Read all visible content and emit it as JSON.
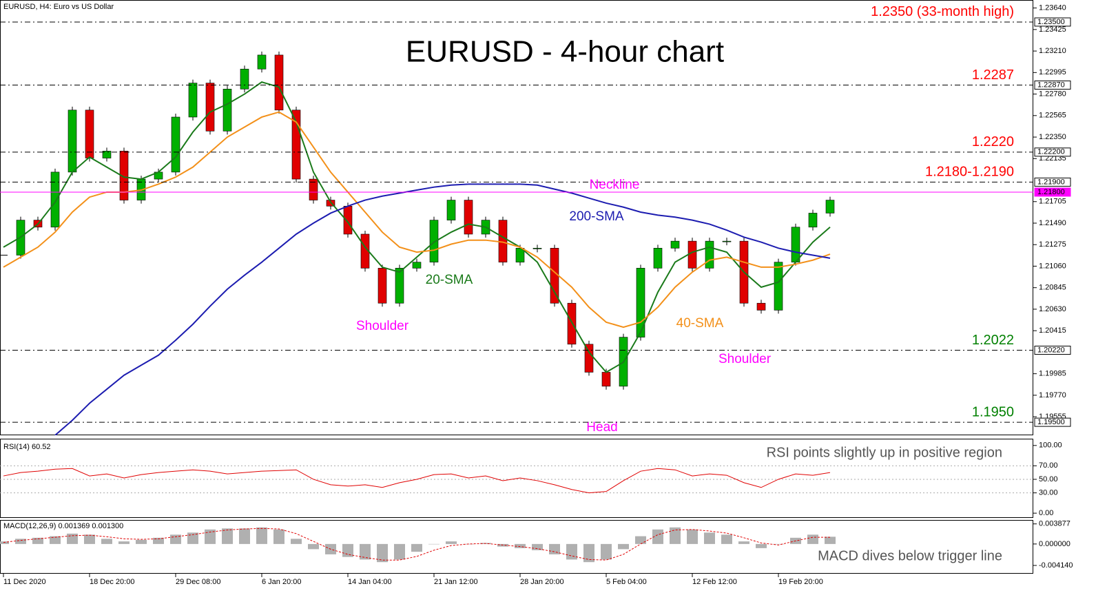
{
  "chart_data": [
    {
      "type": "candlestick",
      "title": "EURUSD - 4-hour chart",
      "subtitle": "EURUSD, H4:  Euro vs US Dollar",
      "categories": [
        "11 Dec 2020",
        null,
        null,
        null,
        null,
        "18 Dec 20:00",
        null,
        null,
        null,
        null,
        "29 Dec 08:00",
        null,
        null,
        null,
        null,
        "6 Jan 20:00",
        null,
        null,
        null,
        null,
        "14 Jan 04:00",
        null,
        null,
        null,
        null,
        "21 Jan 12:00",
        null,
        null,
        null,
        null,
        "28 Jan 20:00",
        null,
        null,
        null,
        null,
        "5 Feb 04:00",
        null,
        null,
        null,
        null,
        "12 Feb 12:00",
        null,
        null,
        null,
        null,
        "19 Feb 20:00",
        null,
        null,
        null
      ],
      "values": [
        1.2117,
        1.2152,
        1.2145,
        1.22,
        1.2262,
        1.2214,
        1.2221,
        1.2172,
        1.2193,
        1.22,
        1.2255,
        1.2289,
        1.2241,
        1.2283,
        1.2303,
        1.2317,
        1.2262,
        1.2193,
        1.2172,
        1.2166,
        1.2138,
        1.2104,
        1.2069,
        1.2104,
        1.211,
        1.2152,
        1.2172,
        1.2138,
        1.2152,
        1.211,
        1.2124,
        1.2124,
        1.2069,
        1.2028,
        1.2,
        1.1986,
        1.2035,
        1.2104,
        1.2124,
        1.2131,
        1.2104,
        1.2131,
        1.2131,
        1.2069,
        1.2062,
        1.211,
        1.2145,
        1.2159,
        1.2172
      ],
      "up_color": "#00b000",
      "down_color": "#e00000",
      "series": [
        {
          "name": "20-SMA",
          "color": "#1a7a1a",
          "values": [
            1.2125,
            1.2135,
            1.2148,
            1.217,
            1.22,
            1.2215,
            1.2205,
            1.2195,
            1.2193,
            1.22,
            1.2215,
            1.224,
            1.226,
            1.2268,
            1.2278,
            1.229,
            1.2285,
            1.225,
            1.22,
            1.217,
            1.215,
            1.2125,
            1.2105,
            1.21,
            1.2115,
            1.213,
            1.214,
            1.2148,
            1.2145,
            1.2135,
            1.2125,
            1.211,
            1.208,
            1.205,
            1.202,
            1.2,
            1.201,
            1.204,
            1.208,
            1.211,
            1.212,
            1.2125,
            1.212,
            1.21,
            1.2085,
            1.209,
            1.211,
            1.213,
            1.2145
          ]
        },
        {
          "name": "40-SMA",
          "color": "#f39019",
          "values": [
            1.2105,
            1.2115,
            1.2125,
            1.214,
            1.216,
            1.2175,
            1.218,
            1.218,
            1.2182,
            1.2188,
            1.2195,
            1.2205,
            1.222,
            1.2235,
            1.2245,
            1.2255,
            1.226,
            1.225,
            1.2225,
            1.22,
            1.218,
            1.216,
            1.214,
            1.2125,
            1.212,
            1.2122,
            1.2128,
            1.2132,
            1.2132,
            1.213,
            1.2125,
            1.2115,
            1.21,
            1.2085,
            1.2065,
            1.205,
            1.2045,
            1.205,
            1.2065,
            1.2085,
            1.21,
            1.2112,
            1.2115,
            1.211,
            1.2105,
            1.2105,
            1.2108,
            1.2112,
            1.2118
          ]
        },
        {
          "name": "200-SMA",
          "color": "#1c1cb0",
          "values": [
            null,
            null,
            null,
            1.1937,
            1.1952,
            1.1969,
            1.1983,
            1.1997,
            1.2007,
            1.2017,
            1.2032,
            1.2048,
            1.2066,
            1.2083,
            1.2097,
            1.211,
            1.2124,
            1.2138,
            1.2149,
            1.2159,
            1.2166,
            1.2172,
            1.2176,
            1.2179,
            1.2182,
            1.2185,
            1.2187,
            1.2188,
            1.2188,
            1.2188,
            1.2188,
            1.2187,
            1.2183,
            1.2179,
            1.2174,
            1.2169,
            1.2165,
            1.216,
            1.2157,
            1.2155,
            1.2152,
            1.2148,
            1.2142,
            1.2135,
            1.213,
            1.2124,
            1.212,
            1.2117,
            1.2114
          ]
        }
      ],
      "ylim": [
        1.1937,
        1.2372
      ],
      "yticks": [
        {
          "value": 1.2364,
          "label": "1.23640"
        },
        {
          "value": 1.23425,
          "label": "1.23425"
        },
        {
          "value": 1.2321,
          "label": "1.23210"
        },
        {
          "value": 1.22995,
          "label": "1.22995"
        },
        {
          "value": 1.2278,
          "label": "1.22780"
        },
        {
          "value": 1.22565,
          "label": "1.22565"
        },
        {
          "value": 1.2235,
          "label": "1.22350"
        },
        {
          "value": 1.22135,
          "label": "1.22135"
        },
        {
          "value": 1.21705,
          "label": "1.21705"
        },
        {
          "value": 1.2149,
          "label": "1.21490"
        },
        {
          "value": 1.21275,
          "label": "1.21275"
        },
        {
          "value": 1.2106,
          "label": "1.21060"
        },
        {
          "value": 1.20845,
          "label": "1.20845"
        },
        {
          "value": 1.2063,
          "label": "1.20630"
        },
        {
          "value": 1.20415,
          "label": "1.20415"
        },
        {
          "value": 1.19985,
          "label": "1.19985"
        },
        {
          "value": 1.1977,
          "label": "1.19770"
        },
        {
          "value": 1.19555,
          "label": "1.19555"
        }
      ],
      "axis_tags": [
        {
          "value": 1.235,
          "label": "1.23500"
        },
        {
          "value": 1.2287,
          "label": "1.22870"
        },
        {
          "value": 1.222,
          "label": "1.22200"
        },
        {
          "value": 1.219,
          "label": "1.21900"
        },
        {
          "value": 1.218,
          "label": "1.21800"
        },
        {
          "value": 1.2022,
          "label": "1.20220"
        },
        {
          "value": 1.195,
          "label": "1.19500"
        }
      ],
      "levels": [
        {
          "value": 1.235,
          "label": "1.2350 (33-month high)",
          "color": "#ff0000"
        },
        {
          "value": 1.2287,
          "label": "1.2287",
          "color": "#ff0000"
        },
        {
          "value": 1.222,
          "label": "1.2220",
          "color": "#ff0000"
        },
        {
          "value": 1.219,
          "label": "1.2180-1.2190",
          "color": "#ff0000"
        },
        {
          "value": 1.2022,
          "label": "1.2022",
          "color": "#008000"
        },
        {
          "value": 1.195,
          "label": "1.1950",
          "color": "#008000"
        }
      ],
      "neckline": {
        "value": 1.218,
        "label": "Neckline",
        "color": "#ff00ff"
      },
      "annotations": [
        "Shoulder",
        "Head",
        "Shoulder"
      ]
    },
    {
      "type": "line",
      "title": "RSI(14) 60.52",
      "annotation": "RSI points slightly up in positive region",
      "values": [
        55,
        60,
        62,
        65,
        66,
        55,
        58,
        52,
        57,
        60,
        62,
        64,
        62,
        58,
        60,
        62,
        63,
        64,
        50,
        42,
        40,
        42,
        38,
        45,
        50,
        57,
        58,
        52,
        55,
        48,
        52,
        48,
        42,
        35,
        30,
        32,
        48,
        62,
        66,
        64,
        55,
        58,
        56,
        45,
        38,
        50,
        58,
        56,
        60
      ],
      "color": "#e00000",
      "ylim": [
        -7,
        110
      ],
      "yticks": [
        {
          "value": 0,
          "label": "0.00"
        },
        {
          "value": 30,
          "label": "30.00"
        },
        {
          "value": 50,
          "label": "50.00"
        },
        {
          "value": 70,
          "label": "70.00"
        },
        {
          "value": 100,
          "label": "100.00"
        }
      ],
      "grid": [
        30,
        50,
        70
      ]
    },
    {
      "type": "macd",
      "title": "MACD(12,26,9) 0.001369 0.001300",
      "annotation": "MACD dives below trigger line",
      "values": [
        0.0005,
        0.001,
        0.0012,
        0.0015,
        0.002,
        0.0018,
        0.001,
        0.0005,
        0.0008,
        0.0012,
        0.0018,
        0.0022,
        0.0028,
        0.003,
        0.003,
        0.0032,
        0.0028,
        0.001,
        -0.001,
        -0.002,
        -0.0025,
        -0.003,
        -0.0035,
        -0.003,
        -0.0015,
        0,
        0.0005,
        0,
        0.0002,
        -0.0005,
        -0.0008,
        -0.0012,
        -0.002,
        -0.003,
        -0.0035,
        -0.003,
        -0.001,
        0.0015,
        0.0028,
        0.0032,
        0.0028,
        0.0022,
        0.0018,
        0.0005,
        -0.0008,
        0,
        0.0012,
        0.0018,
        0.0014
      ],
      "color": "#b0b0b0",
      "signal": {
        "color": "#e00000",
        "values": [
          0.0003,
          0.0007,
          0.001,
          0.0013,
          0.0016,
          0.0017,
          0.0014,
          0.001,
          0.0009,
          0.001,
          0.0014,
          0.0018,
          0.0023,
          0.0027,
          0.0029,
          0.003,
          0.0029,
          0.002,
          0.0005,
          -0.001,
          -0.002,
          -0.0026,
          -0.0031,
          -0.0031,
          -0.0024,
          -0.0012,
          -0.0003,
          0,
          0.0001,
          -0.0002,
          -0.0005,
          -0.0009,
          -0.0015,
          -0.0023,
          -0.003,
          -0.0031,
          -0.002,
          0,
          0.0018,
          0.0027,
          0.0028,
          0.0025,
          0.0021,
          0.0012,
          0.0002,
          -0.0002,
          0.0006,
          0.0013,
          0.0013
        ]
      },
      "ylim": [
        -0.0056,
        0.0045
      ],
      "yticks": [
        0.003877,
        {
          "value": 0,
          "label": "0.000000"
        },
        {
          "value": -0.00414,
          "label": "-0.004140"
        }
      ]
    }
  ]
}
